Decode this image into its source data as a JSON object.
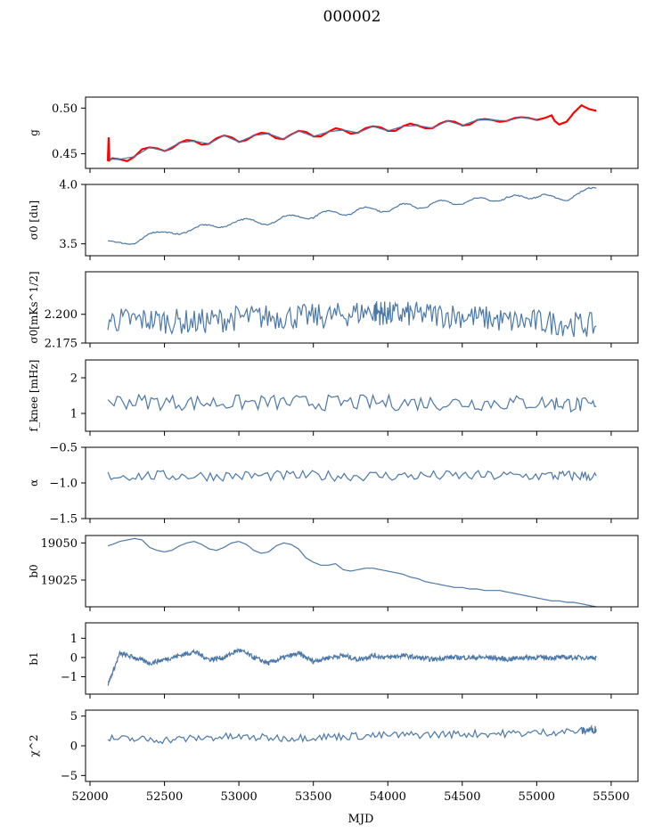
{
  "figure": {
    "title": "000002",
    "xlabel": "MJD"
  },
  "chart_data": [
    {
      "type": "line",
      "title": "",
      "ylabel": "g",
      "xlim": [
        51970,
        55680
      ],
      "ylim": [
        0.434,
        0.512
      ],
      "yticks": [
        0.45,
        0.5
      ],
      "ytick_labels": [
        "0.45",
        "0.50"
      ],
      "series": [
        {
          "color": "#ff0000",
          "x": [
            52120,
            52125,
            52130,
            52150,
            52200,
            52250,
            52300,
            52350,
            52400,
            52450,
            52500,
            52550,
            52600,
            52650,
            52700,
            52750,
            52800,
            52850,
            52900,
            52950,
            53000,
            53050,
            53100,
            53150,
            53200,
            53250,
            53300,
            53350,
            53400,
            53450,
            53500,
            53550,
            53600,
            53650,
            53700,
            53750,
            53800,
            53850,
            53900,
            53950,
            54000,
            54050,
            54100,
            54150,
            54200,
            54250,
            54300,
            54350,
            54400,
            54450,
            54500,
            54550,
            54600,
            54650,
            54700,
            54750,
            54800,
            54850,
            54900,
            54950,
            55000,
            55050,
            55100,
            55120,
            55150,
            55200,
            55250,
            55300,
            55350,
            55400
          ],
          "y": [
            0.442,
            0.468,
            0.443,
            0.445,
            0.444,
            0.442,
            0.447,
            0.455,
            0.457,
            0.456,
            0.453,
            0.456,
            0.462,
            0.465,
            0.464,
            0.46,
            0.461,
            0.467,
            0.47,
            0.468,
            0.463,
            0.465,
            0.47,
            0.473,
            0.472,
            0.467,
            0.466,
            0.471,
            0.475,
            0.474,
            0.469,
            0.469,
            0.474,
            0.478,
            0.476,
            0.472,
            0.473,
            0.478,
            0.48,
            0.479,
            0.475,
            0.475,
            0.48,
            0.483,
            0.481,
            0.478,
            0.478,
            0.483,
            0.486,
            0.485,
            0.481,
            0.482,
            0.487,
            0.488,
            0.487,
            0.485,
            0.486,
            0.489,
            0.49,
            0.489,
            0.487,
            0.489,
            0.492,
            0.486,
            0.482,
            0.485,
            0.495,
            0.503,
            0.499,
            0.497
          ]
        },
        {
          "color": "#4c78a8",
          "x": [
            52130,
            52200,
            52300,
            52400,
            52500,
            52600,
            52700,
            52800,
            52900,
            53000,
            53100,
            53200,
            53300,
            53400,
            53500,
            53600,
            53700,
            53800,
            53900,
            54000,
            54100,
            54200,
            54300,
            54400,
            54500,
            54600,
            54700,
            54800,
            54900,
            55000
          ],
          "y": [
            0.444,
            0.444,
            0.447,
            0.457,
            0.453,
            0.462,
            0.464,
            0.461,
            0.47,
            0.463,
            0.47,
            0.472,
            0.466,
            0.475,
            0.469,
            0.474,
            0.476,
            0.473,
            0.48,
            0.475,
            0.48,
            0.481,
            0.478,
            0.486,
            0.481,
            0.487,
            0.487,
            0.486,
            0.49,
            0.487
          ]
        }
      ]
    },
    {
      "type": "line",
      "title": "",
      "ylabel": "σ0 [du]",
      "ylim": [
        3.4,
        4.0
      ],
      "yticks": [
        3.5,
        4.0
      ],
      "ytick_labels": [
        "3.5",
        "4.0"
      ],
      "series": [
        {
          "color": "#4c78a8",
          "x": [
            52120,
            52200,
            52250,
            52300,
            52350,
            52400,
            52450,
            52500,
            52550,
            52600,
            52650,
            52700,
            52750,
            52800,
            52850,
            52900,
            52950,
            53000,
            53050,
            53100,
            53150,
            53200,
            53250,
            53300,
            53350,
            53400,
            53450,
            53500,
            53550,
            53600,
            53650,
            53700,
            53750,
            53800,
            53850,
            53900,
            53950,
            54000,
            54050,
            54100,
            54150,
            54200,
            54250,
            54300,
            54350,
            54400,
            54450,
            54500,
            54550,
            54600,
            54650,
            54700,
            54750,
            54800,
            54850,
            54900,
            54950,
            55000,
            55050,
            55100,
            55150,
            55200,
            55250,
            55300,
            55350,
            55400
          ],
          "y": [
            3.53,
            3.51,
            3.5,
            3.5,
            3.54,
            3.59,
            3.6,
            3.6,
            3.59,
            3.58,
            3.6,
            3.63,
            3.66,
            3.66,
            3.64,
            3.64,
            3.67,
            3.7,
            3.71,
            3.7,
            3.67,
            3.66,
            3.69,
            3.73,
            3.74,
            3.73,
            3.71,
            3.72,
            3.76,
            3.78,
            3.77,
            3.74,
            3.75,
            3.79,
            3.81,
            3.8,
            3.77,
            3.77,
            3.81,
            3.84,
            3.83,
            3.8,
            3.8,
            3.84,
            3.87,
            3.86,
            3.83,
            3.83,
            3.87,
            3.89,
            3.88,
            3.86,
            3.86,
            3.89,
            3.91,
            3.9,
            3.88,
            3.89,
            3.92,
            3.9,
            3.88,
            3.86,
            3.9,
            3.94,
            3.97,
            3.97
          ]
        }
      ]
    },
    {
      "type": "line",
      "title": "",
      "ylabel": "σ0[mKs^1/2]",
      "ylim": [
        2.175,
        2.237
      ],
      "yticks": [
        2.175,
        2.2
      ],
      "ytick_labels": [
        "2.175",
        "2.200"
      ],
      "series": [
        {
          "color": "#4c78a8",
          "x": [
            52120,
            52400,
            52700,
            53000,
            53300,
            53600,
            53900,
            54000,
            54200,
            54500,
            54800,
            55100,
            55400
          ],
          "y": [
            2.195,
            2.195,
            2.193,
            2.197,
            2.198,
            2.198,
            2.203,
            2.2,
            2.2,
            2.199,
            2.194,
            2.193,
            2.19
          ]
        }
      ]
    },
    {
      "type": "line",
      "title": "",
      "ylabel": "f_knee [mHz]",
      "ylim": [
        0.5,
        2.5
      ],
      "yticks": [
        1,
        2
      ],
      "ytick_labels": [
        "1",
        "2"
      ],
      "series": [
        {
          "color": "#4c78a8",
          "x": [
            52120,
            52700,
            53300,
            53900,
            54500,
            55100,
            55400
          ],
          "y": [
            1.35,
            1.3,
            1.3,
            1.3,
            1.3,
            1.3,
            1.2
          ]
        }
      ]
    },
    {
      "type": "line",
      "title": "",
      "ylabel": "α",
      "ylim": [
        -1.5,
        -0.5
      ],
      "yticks": [
        -1.5,
        -1.0,
        -0.5
      ],
      "ytick_labels": [
        "−1.5",
        "−1.0",
        "−0.5"
      ],
      "series": [
        {
          "color": "#4c78a8",
          "x": [
            52120,
            52700,
            53300,
            53900,
            54500,
            55100,
            55400
          ],
          "y": [
            -0.9,
            -0.9,
            -0.9,
            -0.9,
            -0.9,
            -0.9,
            -0.9
          ]
        }
      ]
    },
    {
      "type": "line",
      "title": "",
      "ylabel": "b0",
      "ylim": [
        19007,
        19055
      ],
      "yticks": [
        19025,
        19050
      ],
      "ytick_labels": [
        "19025",
        "19050"
      ],
      "series": [
        {
          "color": "#4c78a8",
          "x": [
            52120,
            52150,
            52200,
            52250,
            52300,
            52350,
            52400,
            52450,
            52500,
            52550,
            52600,
            52650,
            52700,
            52750,
            52800,
            52850,
            52900,
            52950,
            53000,
            53050,
            53100,
            53150,
            53200,
            53250,
            53300,
            53350,
            53400,
            53450,
            53500,
            53550,
            53600,
            53650,
            53700,
            53750,
            53800,
            53850,
            53900,
            53950,
            54000,
            54050,
            54100,
            54150,
            54200,
            54250,
            54300,
            54350,
            54400,
            54450,
            54500,
            54550,
            54600,
            54650,
            54700,
            54750,
            54800,
            54850,
            54900,
            54950,
            55000,
            55050,
            55100,
            55150,
            55200,
            55250,
            55300,
            55350,
            55400
          ],
          "y": [
            19048,
            19049,
            19051,
            19052,
            19053,
            19052,
            19047,
            19045,
            19044,
            19045,
            19048,
            19050,
            19051,
            19049,
            19046,
            19045,
            19047,
            19050,
            19051,
            19049,
            19045,
            19043,
            19044,
            19048,
            19050,
            19049,
            19046,
            19040,
            19037,
            19035,
            19035,
            19036,
            19032,
            19031,
            19032,
            19033,
            19033,
            19032,
            19031,
            19030,
            19029,
            19027,
            19026,
            19024,
            19023,
            19022,
            19021,
            19020,
            19020,
            19019,
            19019,
            19018,
            19018,
            19018,
            19017,
            19016,
            19015,
            19014,
            19013,
            19012,
            19011,
            19011,
            19010,
            19010,
            19009,
            19008,
            19007
          ]
        }
      ]
    },
    {
      "type": "line",
      "title": "",
      "ylabel": "b1",
      "ylim": [
        -1.9,
        1.8
      ],
      "yticks": [
        -1,
        0,
        1
      ],
      "ytick_labels": [
        "−1",
        "0",
        "1"
      ],
      "series": [
        {
          "color": "#4c78a8",
          "x": [
            52120,
            52200,
            52300,
            52400,
            52500,
            52600,
            52700,
            52800,
            52900,
            53000,
            53100,
            53200,
            53300,
            53400,
            53500,
            53600,
            53700,
            53800,
            53900,
            54000,
            54100,
            54200,
            54300,
            54400,
            54500,
            54600,
            54700,
            54800,
            54900,
            55000,
            55100,
            55200,
            55300,
            55400
          ],
          "y": [
            -1.4,
            0.2,
            0.0,
            -0.3,
            -0.1,
            0.1,
            0.3,
            -0.1,
            0.0,
            0.4,
            0.0,
            -0.3,
            0.0,
            0.2,
            -0.2,
            0.0,
            0.1,
            -0.1,
            0.1,
            0.0,
            0.1,
            0.0,
            -0.1,
            0.0,
            0.0,
            0.0,
            0.0,
            -0.1,
            0.0,
            0.0,
            0.0,
            0.0,
            0.0,
            0.0
          ]
        }
      ]
    },
    {
      "type": "line",
      "title": "",
      "ylabel": "χ^2",
      "ylim": [
        -6,
        6
      ],
      "yticks": [
        -5,
        0,
        5
      ],
      "ytick_labels": [
        "−5",
        "0",
        "5"
      ],
      "series": [
        {
          "color": "#4c78a8",
          "x": [
            52120,
            52500,
            52900,
            53300,
            53700,
            54100,
            54500,
            54900,
            55300,
            55400
          ],
          "y": [
            1.2,
            1.0,
            1.5,
            1.3,
            1.6,
            1.8,
            2.0,
            2.1,
            2.5,
            2.8
          ]
        }
      ]
    }
  ],
  "xaxis": {
    "ticks": [
      52000,
      52500,
      53000,
      53500,
      54000,
      54500,
      55000,
      55500
    ],
    "tick_labels": [
      "52000",
      "52500",
      "53000",
      "53500",
      "54000",
      "54500",
      "55000",
      "55500"
    ]
  }
}
